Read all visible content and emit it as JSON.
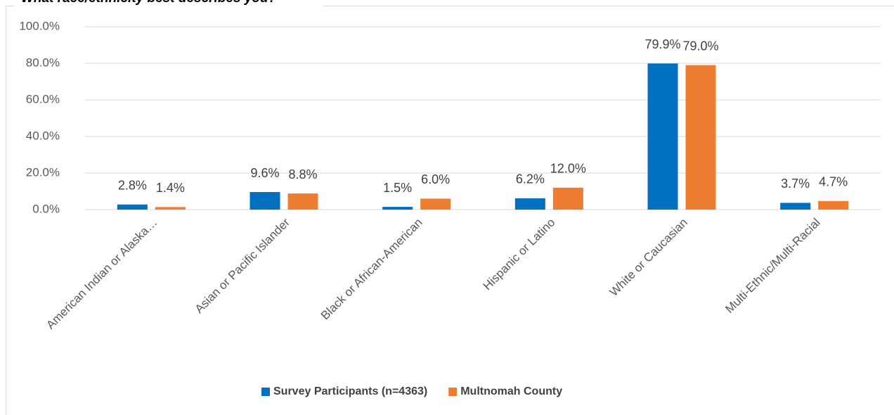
{
  "chart_data": {
    "type": "bar",
    "title": "What race/ethnicity best describes you?",
    "categories": [
      "American Indian or Alaska…",
      "Asian or Pacific Islander",
      "Black or African-American",
      "Hispanic or Latino",
      "White or Caucasian",
      "Multi-Ethnic/Multi-Racial"
    ],
    "series": [
      {
        "name": "Survey Participants (n=4363)",
        "color": "#0070c0",
        "values": [
          2.8,
          9.6,
          1.5,
          6.2,
          79.9,
          3.7
        ],
        "value_labels": [
          "2.8%",
          "9.6%",
          "1.5%",
          "6.2%",
          "79.9%",
          "3.7%"
        ]
      },
      {
        "name": "Multnomah County",
        "color": "#ed7d31",
        "values": [
          1.4,
          8.8,
          6.0,
          12.0,
          79.0,
          4.7
        ],
        "value_labels": [
          "1.4%",
          "8.8%",
          "6.0%",
          "12.0%",
          "79.0%",
          "4.7%"
        ]
      }
    ],
    "ylim": [
      0,
      100
    ],
    "yticks": [
      {
        "value": 0,
        "label": "0.0%"
      },
      {
        "value": 20,
        "label": "20.0%"
      },
      {
        "value": 40,
        "label": "40.0%"
      },
      {
        "value": 60,
        "label": "60.0%"
      },
      {
        "value": 80,
        "label": "80.0%"
      },
      {
        "value": 100,
        "label": "100.0%"
      }
    ],
    "grid": true,
    "legend": "bottom"
  }
}
